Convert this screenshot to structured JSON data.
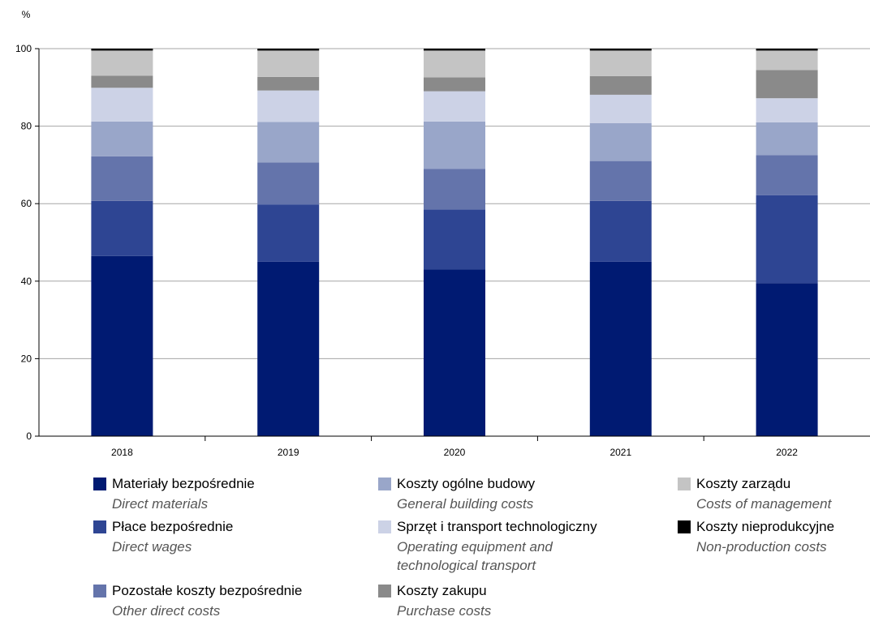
{
  "chart_data": {
    "type": "bar",
    "stacked": true,
    "ylabel": "%",
    "ylim": [
      0,
      100
    ],
    "yticks": [
      0,
      20,
      40,
      60,
      80,
      100
    ],
    "grid": true,
    "legend_position": "bottom",
    "categories": [
      "2018",
      "2019",
      "2020",
      "2021",
      "2022"
    ],
    "series": [
      {
        "name": "Materiały bezpośrednie",
        "name_en": "Direct materials",
        "color": "#001a72",
        "values": [
          46.5,
          45.0,
          43.0,
          45.0,
          39.5
        ]
      },
      {
        "name": "Płace bezpośrednie",
        "name_en": "Direct wages",
        "color": "#2e4593",
        "values": [
          14.2,
          14.8,
          15.5,
          15.7,
          22.7
        ]
      },
      {
        "name": "Pozostałe koszty bezpośrednie",
        "name_en": "Other direct costs",
        "color": "#6474ab",
        "values": [
          11.5,
          10.8,
          10.5,
          10.3,
          10.3
        ]
      },
      {
        "name": "Koszty ogólne budowy",
        "name_en": "General building costs",
        "color": "#99a6c9",
        "values": [
          9.0,
          10.5,
          12.2,
          9.8,
          8.5
        ]
      },
      {
        "name": "Sprzęt i transport technologiczny",
        "name_en": "Operating equipment and technological transport",
        "color": "#ccd2e6",
        "values": [
          8.7,
          8.1,
          7.8,
          7.3,
          6.2
        ]
      },
      {
        "name": "Koszty zakupu",
        "name_en": "Purchase costs",
        "color": "#8a8a8a",
        "values": [
          3.1,
          3.5,
          3.6,
          4.8,
          7.3
        ]
      },
      {
        "name": "Koszty zarządu",
        "name_en": "Costs of management",
        "color": "#c4c4c4",
        "values": [
          6.5,
          6.8,
          6.9,
          6.6,
          5.0
        ]
      },
      {
        "name": "Koszty nieprodukcyjne",
        "name_en": "Non-production costs",
        "color": "#000000",
        "values": [
          0.5,
          0.5,
          0.5,
          0.5,
          0.5
        ]
      }
    ]
  },
  "legend": [
    {
      "pl": "Materiały bezpośrednie",
      "en": "Direct materials",
      "color": "#001a72"
    },
    {
      "pl": "Płace bezpośrednie",
      "en": "Direct wages",
      "color": "#2e4593"
    },
    {
      "pl": "Pozostałe koszty bezpośrednie",
      "en": "Other direct costs",
      "color": "#6474ab"
    },
    {
      "pl": "Koszty ogólne budowy",
      "en": "General building costs",
      "color": "#99a6c9"
    },
    {
      "pl": " Sprzęt i transport technologiczny",
      "en": "Operating equipment and",
      "en2": "technological transport",
      "color": "#ccd2e6"
    },
    {
      "pl": "Koszty zakupu",
      "en": "Purchase costs",
      "color": "#8a8a8a"
    },
    {
      "pl": "Koszty zarządu",
      "en": "Costs of management",
      "color": "#c4c4c4"
    },
    {
      "pl": "Koszty nieprodukcyjne",
      "en": "Non-production costs",
      "color": "#000000"
    }
  ]
}
